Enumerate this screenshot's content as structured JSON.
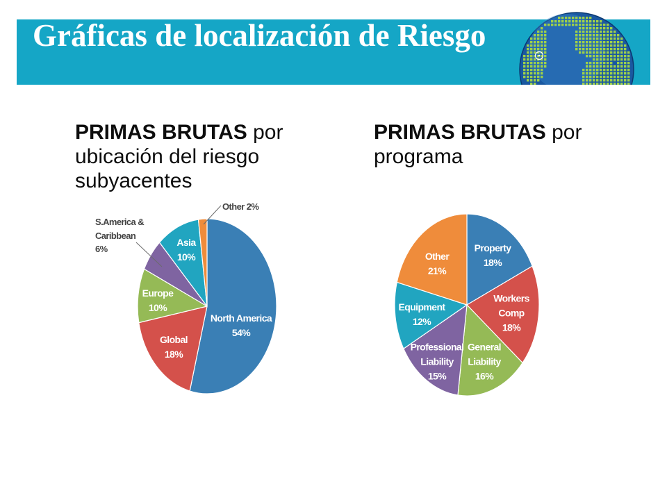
{
  "header": {
    "title": "Gráficas de localización de Riesgo",
    "bg_color": "#15a6c6"
  },
  "icons": {
    "globe": "globe-icon",
    "marker": "location-marker-icon"
  },
  "chart_data": [
    {
      "type": "pie",
      "title_bold": "PRIMAS BRUTAS",
      "title_rest": "por ubicación del riesgo subyacentes",
      "categories": [
        "North America",
        "Global",
        "Europe",
        "S.America & Caribbean",
        "Asia",
        "Other"
      ],
      "values": [
        54,
        18,
        10,
        6,
        10,
        2
      ],
      "value_suffix": "%",
      "colors": [
        "#3a7fb5",
        "#d4514b",
        "#95ba56",
        "#7f64a1",
        "#21a5c0",
        "#ef8c3b"
      ]
    },
    {
      "type": "pie",
      "title_bold": "PRIMAS BRUTAS",
      "title_rest": "por programa",
      "categories": [
        "Property",
        "Workers Comp",
        "General Liability",
        "Professional Liability",
        "Equipment",
        "Other"
      ],
      "values": [
        18,
        18,
        16,
        15,
        12,
        21
      ],
      "value_suffix": "%",
      "colors": [
        "#3a7fb5",
        "#d4514b",
        "#95ba56",
        "#7f64a1",
        "#21a5c0",
        "#ef8c3b"
      ]
    }
  ]
}
